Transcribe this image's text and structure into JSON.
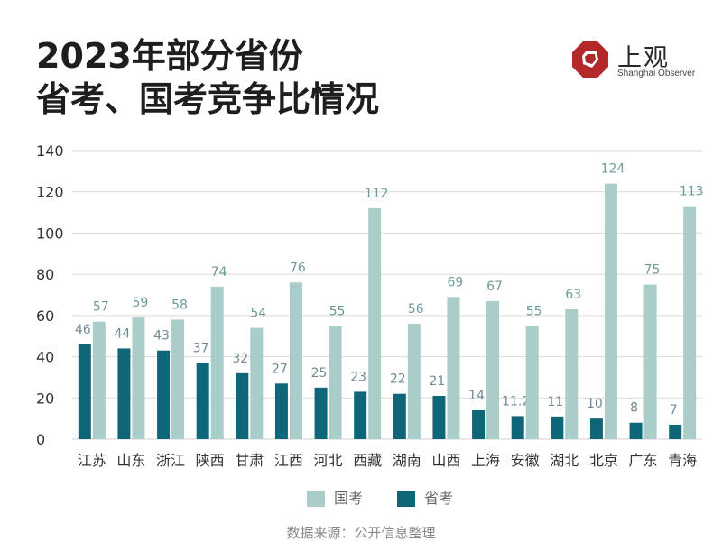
{
  "header": {
    "title_line1": "2023年部分省份",
    "title_line2": "省考、国考竞争比情况"
  },
  "logo": {
    "cn": "上观",
    "en": "Shanghai Observer"
  },
  "colors": {
    "guokao": "#a9cdc8",
    "shengkao": "#0f6678",
    "guokao_label": "#6f9a9a",
    "shengkao_label": "#6f8b93",
    "logo_red": "#b5282a",
    "grid": "#d9d9d9",
    "tick_text": "#333333"
  },
  "chart_data": {
    "type": "bar",
    "categories": [
      "江苏",
      "山东",
      "浙江",
      "陕西",
      "甘肃",
      "江西",
      "河北",
      "西藏",
      "湖南",
      "山西",
      "上海",
      "安徽",
      "湖北",
      "北京",
      "广东",
      "青海"
    ],
    "series": [
      {
        "name": "省考",
        "values": [
          46,
          44,
          43,
          37,
          32,
          27,
          25,
          23,
          22,
          21,
          14,
          11.2,
          11,
          10,
          8,
          7
        ]
      },
      {
        "name": "国考",
        "values": [
          57,
          59,
          58,
          74,
          54,
          76,
          55,
          112,
          56,
          69,
          67,
          55,
          63,
          124,
          75,
          113
        ]
      }
    ],
    "data_labels": {
      "省考": [
        "46",
        "44",
        "43",
        "37",
        "32",
        "27",
        "25",
        "23",
        "22",
        "21",
        "14",
        "11.2",
        "11",
        "10",
        "8",
        "7"
      ],
      "国考": [
        "57",
        "59",
        "58",
        "74",
        "54",
        "76",
        "55",
        "112",
        "56",
        "69",
        "67",
        "55",
        "63",
        "124",
        "75",
        "113"
      ]
    },
    "yticks": [
      "0",
      "20",
      "40",
      "60",
      "80",
      "100",
      "120",
      "140"
    ],
    "ylim": [
      0,
      140
    ],
    "grid": true,
    "legend_position": "bottom-center"
  },
  "legend": {
    "items": [
      {
        "label": "国考",
        "color": "#a9cdc8"
      },
      {
        "label": "省考",
        "color": "#0f6678"
      }
    ]
  },
  "footer": {
    "source": "数据来源：公开信息整理"
  }
}
